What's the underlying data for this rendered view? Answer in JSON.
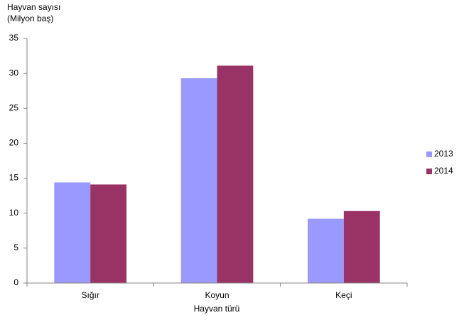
{
  "chart_data": {
    "type": "bar",
    "y_label": [
      "Hayvan sayısı",
      "(Milyon baş)"
    ],
    "x_label": "Hayvan türü",
    "categories": [
      "Sığır",
      "Koyun",
      "Keçi"
    ],
    "series": [
      {
        "name": "2013",
        "color": "#9999ff",
        "values": [
          14.4,
          29.3,
          9.2
        ]
      },
      {
        "name": "2014",
        "color": "#993366",
        "values": [
          14.1,
          31.1,
          10.3
        ]
      }
    ],
    "ylim": [
      0,
      35
    ],
    "yticks": [
      0,
      5,
      10,
      15,
      20,
      25,
      30,
      35
    ],
    "grid": false,
    "legend": "right"
  }
}
